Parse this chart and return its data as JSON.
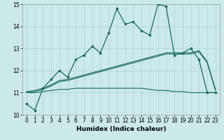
{
  "xlabel": "Humidex (Indice chaleur)",
  "xlim": [
    -0.5,
    23.5
  ],
  "ylim": [
    10,
    15
  ],
  "yticks": [
    10,
    11,
    12,
    13,
    14,
    15
  ],
  "xticks": [
    0,
    1,
    2,
    3,
    4,
    5,
    6,
    7,
    8,
    9,
    10,
    11,
    12,
    13,
    14,
    15,
    16,
    17,
    18,
    19,
    20,
    21,
    22,
    23
  ],
  "bg_color": "#cce9e9",
  "grid_color": "#aad4d4",
  "line_color": "#1a6b5a",
  "main_x": [
    0,
    1,
    2,
    3,
    4,
    5,
    6,
    7,
    8,
    9,
    10,
    11,
    12,
    13,
    14,
    15,
    16,
    17,
    18,
    19,
    20,
    21,
    22,
    23
  ],
  "main_y": [
    10.5,
    10.2,
    11.2,
    11.6,
    12.0,
    11.7,
    12.5,
    12.7,
    13.1,
    12.8,
    13.7,
    14.8,
    14.1,
    14.2,
    13.8,
    13.6,
    15.0,
    14.9,
    12.7,
    12.8,
    13.0,
    12.5,
    11.0,
    11.0
  ],
  "upper_y": [
    11.0,
    11.05,
    11.15,
    11.3,
    11.5,
    11.55,
    11.65,
    11.75,
    11.85,
    11.95,
    12.05,
    12.15,
    12.25,
    12.35,
    12.45,
    12.55,
    12.65,
    12.75,
    12.75,
    12.75,
    12.75,
    12.85,
    12.35,
    11.1
  ],
  "upper2_y": [
    11.05,
    11.1,
    11.2,
    11.35,
    11.55,
    11.6,
    11.7,
    11.8,
    11.9,
    12.0,
    12.1,
    12.2,
    12.3,
    12.4,
    12.5,
    12.6,
    12.7,
    12.8,
    12.8,
    12.8,
    12.8,
    12.9,
    12.4,
    11.15
  ],
  "lower_y": [
    11.0,
    11.0,
    11.05,
    11.1,
    11.15,
    11.15,
    11.2,
    11.2,
    11.2,
    11.2,
    11.2,
    11.2,
    11.2,
    11.2,
    11.2,
    11.15,
    11.1,
    11.1,
    11.05,
    11.05,
    11.0,
    11.0,
    11.0,
    11.0
  ]
}
